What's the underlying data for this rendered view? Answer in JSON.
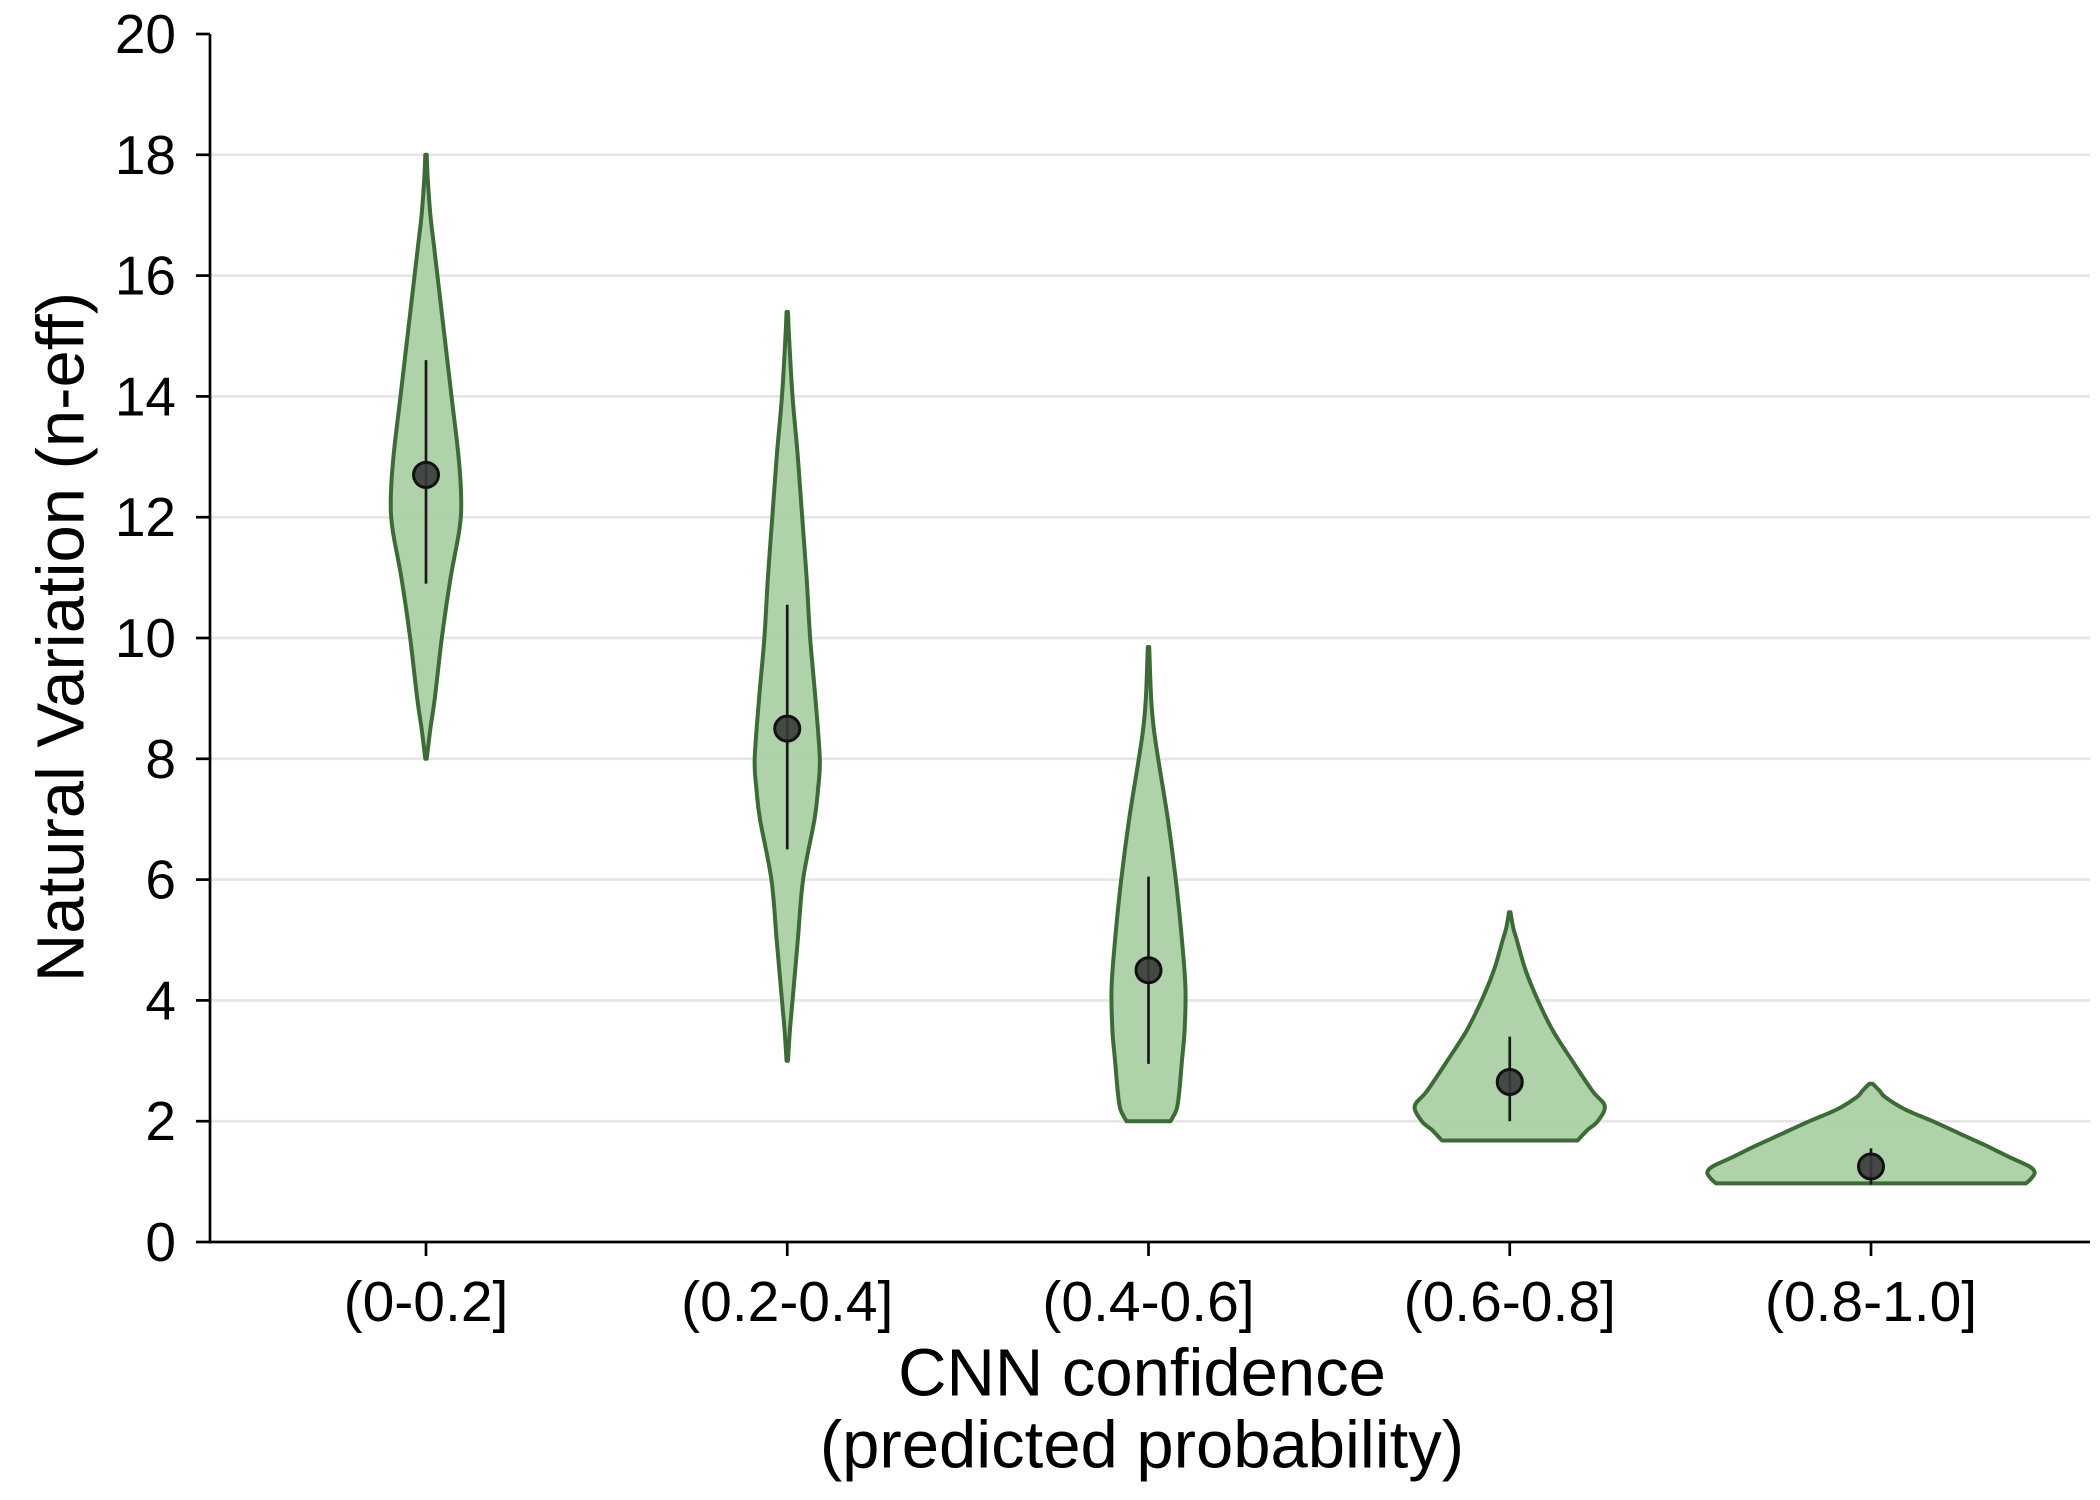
{
  "chart_data": {
    "type": "violin",
    "categories": [
      "(0-0.2]",
      "(0.2-0.4]",
      "(0.4-0.6]",
      "(0.6-0.8]",
      "(0.8-1.0]"
    ],
    "xlabel": [
      "CNN confidence",
      "(predicted probability)"
    ],
    "ylabel": "Natural Variation (n-eff)",
    "ylim": [
      0,
      20
    ],
    "yticks": [
      0,
      2,
      4,
      6,
      8,
      10,
      12,
      14,
      16,
      18,
      20
    ],
    "grid": true,
    "violins": [
      {
        "center": 12.7,
        "interval": [
          10.9,
          14.6
        ],
        "range": [
          8.0,
          18.0
        ],
        "density": [
          [
            18.0,
            0.004
          ],
          [
            17.6,
            0.01
          ],
          [
            17.0,
            0.025
          ],
          [
            16.5,
            0.045
          ],
          [
            16.0,
            0.065
          ],
          [
            15.0,
            0.105
          ],
          [
            14.0,
            0.145
          ],
          [
            13.0,
            0.185
          ],
          [
            12.3,
            0.2
          ],
          [
            11.8,
            0.19
          ],
          [
            11.0,
            0.14
          ],
          [
            10.0,
            0.09
          ],
          [
            9.0,
            0.05
          ],
          [
            8.5,
            0.025
          ],
          [
            8.0,
            0.004
          ]
        ]
      },
      {
        "center": 8.5,
        "interval": [
          6.5,
          10.55
        ],
        "range": [
          3.0,
          15.4
        ],
        "density": [
          [
            15.4,
            0.004
          ],
          [
            15.0,
            0.01
          ],
          [
            14.0,
            0.03
          ],
          [
            13.0,
            0.06
          ],
          [
            12.0,
            0.085
          ],
          [
            11.0,
            0.11
          ],
          [
            10.0,
            0.13
          ],
          [
            9.0,
            0.16
          ],
          [
            8.0,
            0.185
          ],
          [
            7.5,
            0.175
          ],
          [
            7.0,
            0.155
          ],
          [
            6.0,
            0.09
          ],
          [
            5.0,
            0.06
          ],
          [
            4.0,
            0.03
          ],
          [
            3.5,
            0.015
          ],
          [
            3.0,
            0.004
          ]
        ]
      },
      {
        "center": 4.5,
        "interval": [
          2.95,
          6.05
        ],
        "range": [
          2.0,
          9.85
        ],
        "density": [
          [
            9.85,
            0.004
          ],
          [
            9.0,
            0.015
          ],
          [
            8.5,
            0.03
          ],
          [
            8.0,
            0.055
          ],
          [
            7.0,
            0.11
          ],
          [
            6.0,
            0.155
          ],
          [
            5.0,
            0.19
          ],
          [
            4.2,
            0.21
          ],
          [
            3.5,
            0.205
          ],
          [
            3.0,
            0.19
          ],
          [
            2.5,
            0.175
          ],
          [
            2.2,
            0.16
          ],
          [
            2.0,
            0.125
          ]
        ]
      },
      {
        "center": 2.65,
        "interval": [
          2.0,
          3.4
        ],
        "range": [
          1.68,
          5.46
        ],
        "density": [
          [
            5.46,
            0.004
          ],
          [
            5.2,
            0.02
          ],
          [
            5.0,
            0.04
          ],
          [
            4.5,
            0.09
          ],
          [
            4.0,
            0.16
          ],
          [
            3.5,
            0.245
          ],
          [
            3.0,
            0.355
          ],
          [
            2.5,
            0.47
          ],
          [
            2.25,
            0.54
          ],
          [
            2.0,
            0.5
          ],
          [
            1.85,
            0.44
          ],
          [
            1.68,
            0.385
          ]
        ]
      },
      {
        "center": 1.25,
        "interval": [
          0.95,
          1.55
        ],
        "range": [
          0.97,
          2.62
        ],
        "density": [
          [
            2.62,
            0.01
          ],
          [
            2.5,
            0.05
          ],
          [
            2.4,
            0.08
          ],
          [
            2.2,
            0.19
          ],
          [
            2.0,
            0.35
          ],
          [
            1.8,
            0.5
          ],
          [
            1.6,
            0.65
          ],
          [
            1.4,
            0.79
          ],
          [
            1.25,
            0.9
          ],
          [
            1.15,
            0.93
          ],
          [
            1.05,
            0.91
          ],
          [
            0.97,
            0.88
          ]
        ]
      }
    ]
  },
  "colors": {
    "violin_fill": "#acd0a6",
    "violin_outline": "#3d6b37",
    "marker_fill": "#3a3a3a",
    "marker_edge": "#111111",
    "whisker": "#1a1a1a",
    "gridline": "#e6e6e6",
    "axis": "#000000"
  }
}
